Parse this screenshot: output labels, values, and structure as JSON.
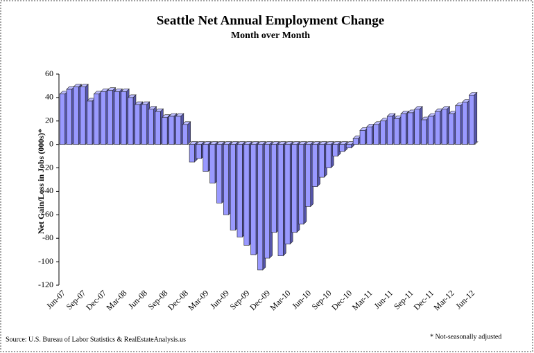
{
  "chart_data": {
    "type": "bar",
    "title": "Seattle Net Annual Employment Change",
    "subtitle": "Month over Month",
    "y_label": "Net Gain/Loss in Jobs (000s)*",
    "source": "Source: U.S. Bureau of Labor Statistics & RealEstateAnalysis.us",
    "footnote": "* Not-seasonally adjusted",
    "color": "#9999ff",
    "categories": [
      "Jun-07",
      null,
      null,
      "Sep-07",
      null,
      null,
      "Dec-07",
      null,
      null,
      "Mar-08",
      null,
      null,
      "Jun-08",
      null,
      null,
      "Sep-08",
      null,
      null,
      "Dec-08",
      null,
      null,
      "Mar-09",
      null,
      null,
      "Jun-09",
      null,
      null,
      "Sep-09",
      null,
      null,
      "Dec-09",
      null,
      null,
      "Mar-10",
      null,
      null,
      "Jun-10",
      null,
      null,
      "Sep-10",
      null,
      null,
      "Dec-10",
      null,
      null,
      "Mar-11",
      null,
      null,
      "Jun-11",
      null,
      null,
      "Sep-11",
      null,
      null,
      "Dec-11",
      null,
      null,
      "Mar-12",
      null,
      null,
      "Jun-12"
    ],
    "values": [
      43,
      47,
      49,
      49,
      37,
      43,
      45,
      46,
      45,
      45,
      40,
      34,
      34,
      30,
      28,
      23,
      24,
      24,
      17,
      -15,
      -12,
      -23,
      -33,
      -50,
      -60,
      -73,
      -79,
      -86,
      -94,
      -107,
      -97,
      -75,
      -95,
      -85,
      -75,
      -68,
      -53,
      -36,
      -28,
      -20,
      -10,
      -6,
      -3,
      5,
      12,
      15,
      17,
      20,
      24,
      22,
      26,
      27,
      30,
      21,
      24,
      28,
      30,
      26,
      33,
      36,
      42
    ],
    "ylim": [
      -120,
      60
    ],
    "yticks": [
      -120,
      -100,
      -80,
      -60,
      -40,
      -20,
      0,
      20,
      40,
      60
    ],
    "grid": false
  }
}
